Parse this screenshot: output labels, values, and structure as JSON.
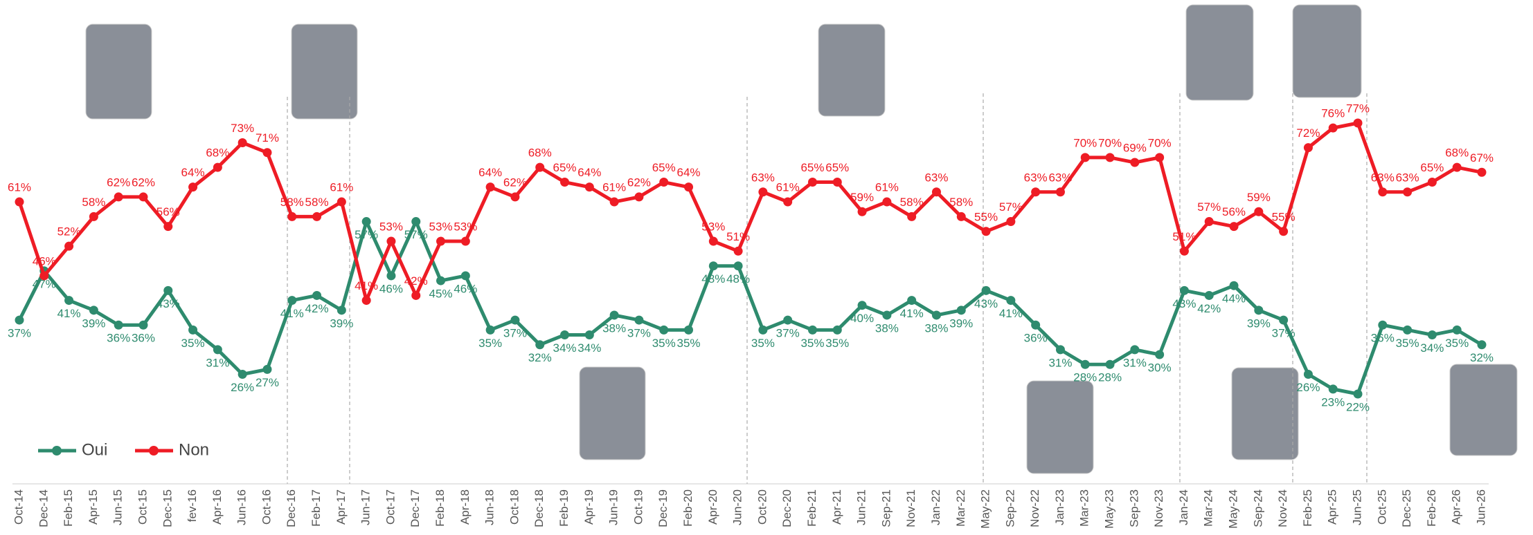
{
  "chart_data": {
    "type": "line",
    "categories": [
      "Oct-14",
      "Dec-14",
      "Feb-15",
      "Apr-15",
      "Jun-15",
      "Oct-15",
      "Dec-15",
      "fev-16",
      "Apr-16",
      "Jun-16",
      "Oct-16",
      "Dec-16",
      "Feb-17",
      "Apr-17",
      "Jun-17",
      "Oct-17",
      "Dec-17",
      "Feb-18",
      "Apr-18",
      "Jun-18",
      "Oct-18",
      "Dec-18",
      "Feb-19",
      "Apr-19",
      "Jun-19",
      "Oct-19",
      "Dec-19",
      "Feb-20",
      "Apr-20",
      "Jun-20",
      "Oct-20",
      "Dec-20",
      "Feb-21",
      "Apr-21",
      "Jun-21",
      "Sep-21",
      "Nov-21",
      "Jan-22",
      "Mar-22",
      "May-22",
      "Sep-22",
      "Nov-22",
      "Jan-23",
      "Mar-23",
      "May-23",
      "Sep-23",
      "Nov-23",
      "Jan-24",
      "Mar-24",
      "May-24",
      "Sep-24",
      "Nov-24",
      "Feb-25",
      "Apr-25",
      "Jun-25",
      "Oct-25",
      "Dec-25",
      "Feb-26",
      "Apr-26",
      "Jun-26"
    ],
    "series": [
      {
        "name": "Oui",
        "color": "#2e8b6e",
        "values": [
          37,
          47,
          41,
          39,
          36,
          36,
          43,
          35,
          31,
          26,
          27,
          41,
          42,
          39,
          57,
          46,
          57,
          45,
          46,
          35,
          37,
          32,
          34,
          34,
          38,
          37,
          35,
          35,
          48,
          48,
          35,
          37,
          35,
          35,
          40,
          38,
          41,
          38,
          39,
          43,
          41,
          36,
          31,
          28,
          28,
          31,
          30,
          43,
          42,
          44,
          39,
          37,
          26,
          23,
          22,
          36,
          35,
          34,
          35,
          32
        ],
        "value_labels": [
          "37%",
          "47%",
          "41%",
          "39%",
          "36%",
          "36%",
          "43%",
          "35%",
          "31%",
          "26%",
          "27%",
          "41%",
          "42%",
          "39%",
          "57%",
          "46%",
          "57%",
          "45%",
          "46%",
          "35%",
          "37%",
          "32%",
          "34%",
          "34%",
          "38%",
          "37%",
          "35%",
          "35%",
          "48%",
          "48%",
          "35%",
          "37%",
          "35%",
          "35%",
          "40%",
          "38%",
          "41%",
          "38%",
          "39%",
          "43%",
          "41%",
          "36%",
          "31%",
          "28%",
          "28%",
          "31%",
          "30%",
          "43%",
          "42%",
          "44%",
          "39%",
          "37%",
          "26%",
          "23%",
          "22%",
          "36%",
          "35%",
          "34%",
          "35%",
          "32%"
        ]
      },
      {
        "name": "Non",
        "color": "#ee1c25",
        "values": [
          61,
          46,
          52,
          58,
          62,
          62,
          56,
          64,
          68,
          73,
          71,
          58,
          58,
          61,
          41,
          53,
          42,
          53,
          53,
          64,
          62,
          68,
          65,
          64,
          61,
          62,
          65,
          64,
          53,
          51,
          63,
          61,
          65,
          65,
          59,
          61,
          58,
          63,
          58,
          55,
          57,
          63,
          63,
          70,
          70,
          69,
          70,
          51,
          57,
          56,
          59,
          55,
          72,
          76,
          77,
          63,
          63,
          65,
          68,
          67
        ],
        "value_labels": [
          "61%",
          "46%",
          "52%",
          "58%",
          "62%",
          "62%",
          "56%",
          "64%",
          "68%",
          "73%",
          "71%",
          "58%",
          "58%",
          "61%",
          "41%",
          "53%",
          "42%",
          "53%",
          "53%",
          "64%",
          "62%",
          "68%",
          "65%",
          "64%",
          "61%",
          "62%",
          "65%",
          "64%",
          "53%",
          "51%",
          "63%",
          "61%",
          "65%",
          "65%",
          "59%",
          "61%",
          "58%",
          "63%",
          "58%",
          "55%",
          "57%",
          "63%",
          "63%",
          "70%",
          "70%",
          "69%",
          "70%",
          "51%",
          "57%",
          "56%",
          "59%",
          "55%",
          "72%",
          "76%",
          "77%",
          "63%",
          "63%",
          "65%",
          "68%",
          "67%"
        ]
      }
    ],
    "legend": "bottom-left"
  }
}
